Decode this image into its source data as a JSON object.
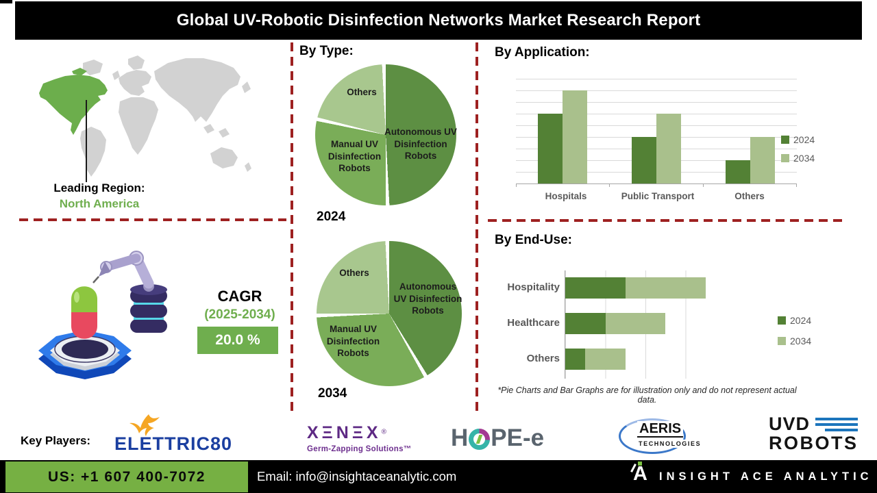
{
  "title": "Global UV-Robotic Disinfection Networks Market Research Report",
  "leading_region": {
    "label": "Leading Region:",
    "value": "North America"
  },
  "cagr": {
    "label": "CAGR",
    "period": "(2025-2034)",
    "value": "20.0 %"
  },
  "sections": {
    "by_type": "By Type:",
    "by_application": "By Application:",
    "by_end_use": "By End-Use:"
  },
  "footnote": "*Pie Charts and Bar Graphs are for illustration only and do not represent actual data.",
  "chart_data": [
    {
      "type": "pie",
      "title": "2024",
      "group": "By Type",
      "slices": [
        {
          "label": "Autonomous UV Disinfection Robots",
          "value": 50,
          "color": "#5d8f43"
        },
        {
          "label": "Manual UV Disinfection Robots",
          "value": 29,
          "color": "#7aad58"
        },
        {
          "label": "Others",
          "value": 21,
          "color": "#a8c78e"
        }
      ]
    },
    {
      "type": "pie",
      "title": "2034",
      "group": "By Type",
      "slices": [
        {
          "label": "Autonomous UV Disinfection Robots",
          "value": 42,
          "color": "#5d8f43"
        },
        {
          "label": "Manual UV Disinfection Robots",
          "value": 33,
          "color": "#7aad58"
        },
        {
          "label": "Others",
          "value": 25,
          "color": "#a8c78e"
        }
      ]
    },
    {
      "type": "bar",
      "title": "By Application:",
      "categories": [
        "Hospitals",
        "Public Transport",
        "Others"
      ],
      "series": [
        {
          "name": "2024",
          "values": [
            6,
            4,
            2
          ],
          "color": "#538135"
        },
        {
          "name": "2034",
          "values": [
            8,
            6,
            4
          ],
          "color": "#a9c08c"
        }
      ],
      "ylim": [
        0,
        9
      ],
      "grid": "horizontal",
      "legend_position": "right"
    },
    {
      "type": "bar-horizontal-stacked",
      "title": "By End-Use:",
      "categories": [
        "Hospitality",
        "Healthcare",
        "Others"
      ],
      "series": [
        {
          "name": "2024",
          "values": [
            1.5,
            1,
            0.5
          ],
          "color": "#538135"
        },
        {
          "name": "2034",
          "values": [
            2,
            1.5,
            1
          ],
          "color": "#a9c08c"
        }
      ],
      "xlim": [
        0,
        4
      ],
      "grid": "vertical",
      "legend_position": "right"
    }
  ],
  "key_players": {
    "label": "Key Players:",
    "elettric80": {
      "name": "ELETTRIC80",
      "icon": "bird-icon"
    },
    "xenex": {
      "wordmark": "XΞNΞX",
      "reg": "®",
      "tagline": "Germ-Zapping Solutions™"
    },
    "hope_e": {
      "left": "H",
      "right": "PE-e"
    },
    "aeris": {
      "name": "AERIS",
      "sub": "TECHNOLOGIES"
    },
    "uvd": {
      "line1": "UVD",
      "line2": "ROBOTS"
    }
  },
  "footer": {
    "phone": "US: +1 607 400-7072",
    "email": "Email: info@insightaceanalytic.com",
    "brand": "INSIGHT ACE ANALYTIC",
    "logo_letter": "A"
  },
  "colors": {
    "accent_green": "#6fae4e",
    "dark_green": "#538135",
    "light_green": "#a9c08c",
    "divider_red": "#9e2121",
    "footer_green": "#76b043",
    "map_gray": "#d2d2d2",
    "map_highlight": "#6cae4c"
  }
}
